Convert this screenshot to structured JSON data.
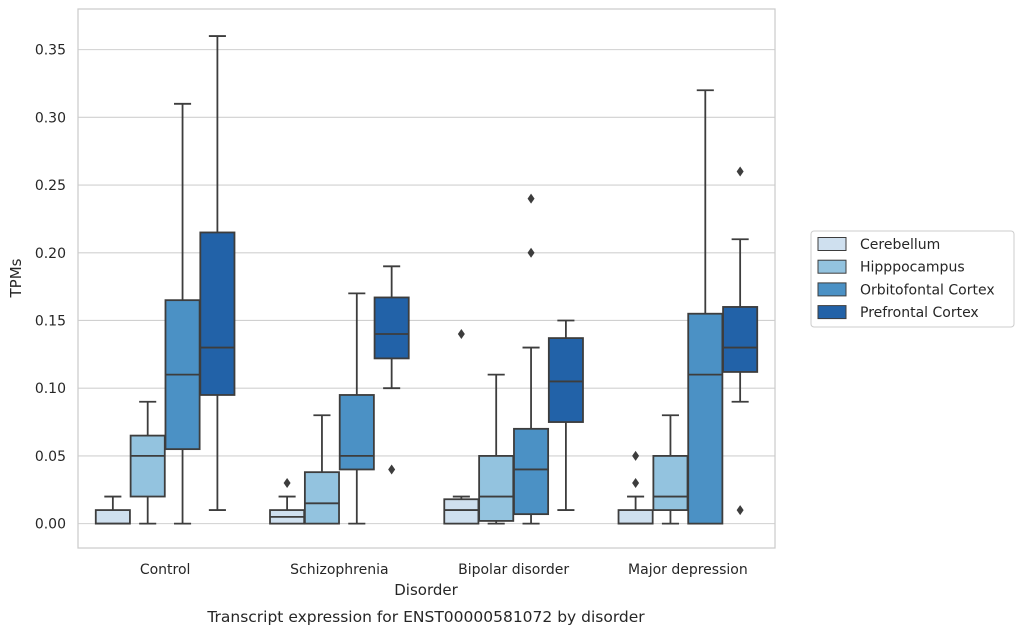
{
  "chart_data": {
    "type": "boxplot",
    "title": "",
    "caption": "Transcript expression for ENST00000581072 by disorder",
    "xlabel": "Disorder",
    "ylabel": "TPMs",
    "ylim": [
      -0.018,
      0.38
    ],
    "y_ticks": [
      "0.00",
      "0.05",
      "0.10",
      "0.15",
      "0.20",
      "0.25",
      "0.30",
      "0.35"
    ],
    "grid": "horizontal",
    "legend_position": "right",
    "categories": [
      "Control",
      "Schizophrenia",
      "Bipolar disorder",
      "Major depression"
    ],
    "series": [
      {
        "name": "Cerebellum",
        "color": "#cfe0ef",
        "boxes": [
          {
            "whislo": 0.0,
            "q1": 0.0,
            "med": 0.0,
            "q3": 0.01,
            "whishi": 0.02,
            "fliers": []
          },
          {
            "whislo": 0.0,
            "q1": 0.0,
            "med": 0.005,
            "q3": 0.01,
            "whishi": 0.02,
            "fliers": [
              0.03
            ]
          },
          {
            "whislo": 0.0,
            "q1": 0.0,
            "med": 0.01,
            "q3": 0.018,
            "whishi": 0.02,
            "fliers": [
              0.14
            ]
          },
          {
            "whislo": 0.0,
            "q1": 0.0,
            "med": 0.0,
            "q3": 0.01,
            "whishi": 0.02,
            "fliers": [
              0.03,
              0.05
            ]
          }
        ]
      },
      {
        "name": "Hipppocampus",
        "color": "#93c3df",
        "boxes": [
          {
            "whislo": 0.0,
            "q1": 0.02,
            "med": 0.05,
            "q3": 0.065,
            "whishi": 0.09,
            "fliers": []
          },
          {
            "whislo": 0.0,
            "q1": 0.0,
            "med": 0.015,
            "q3": 0.038,
            "whishi": 0.08,
            "fliers": []
          },
          {
            "whislo": 0.0,
            "q1": 0.002,
            "med": 0.02,
            "q3": 0.05,
            "whishi": 0.11,
            "fliers": []
          },
          {
            "whislo": 0.0,
            "q1": 0.01,
            "med": 0.02,
            "q3": 0.05,
            "whishi": 0.08,
            "fliers": []
          }
        ]
      },
      {
        "name": "Orbitofontal Cortex",
        "color": "#4b91c5",
        "boxes": [
          {
            "whislo": 0.0,
            "q1": 0.055,
            "med": 0.11,
            "q3": 0.165,
            "whishi": 0.31,
            "fliers": []
          },
          {
            "whislo": 0.0,
            "q1": 0.04,
            "med": 0.05,
            "q3": 0.095,
            "whishi": 0.17,
            "fliers": []
          },
          {
            "whislo": 0.0,
            "q1": 0.007,
            "med": 0.04,
            "q3": 0.07,
            "whishi": 0.13,
            "fliers": [
              0.2,
              0.24
            ]
          },
          {
            "whislo": 0.0,
            "q1": 0.0,
            "med": 0.11,
            "q3": 0.155,
            "whishi": 0.32,
            "fliers": []
          }
        ]
      },
      {
        "name": "Prefrontal Cortex",
        "color": "#2262a8",
        "boxes": [
          {
            "whislo": 0.01,
            "q1": 0.095,
            "med": 0.13,
            "q3": 0.215,
            "whishi": 0.36,
            "fliers": []
          },
          {
            "whislo": 0.1,
            "q1": 0.122,
            "med": 0.14,
            "q3": 0.167,
            "whishi": 0.19,
            "fliers": [
              0.04
            ]
          },
          {
            "whislo": 0.01,
            "q1": 0.075,
            "med": 0.105,
            "q3": 0.137,
            "whishi": 0.15,
            "fliers": []
          },
          {
            "whislo": 0.09,
            "q1": 0.112,
            "med": 0.13,
            "q3": 0.16,
            "whishi": 0.21,
            "fliers": [
              0.01,
              0.26
            ]
          }
        ]
      }
    ]
  }
}
